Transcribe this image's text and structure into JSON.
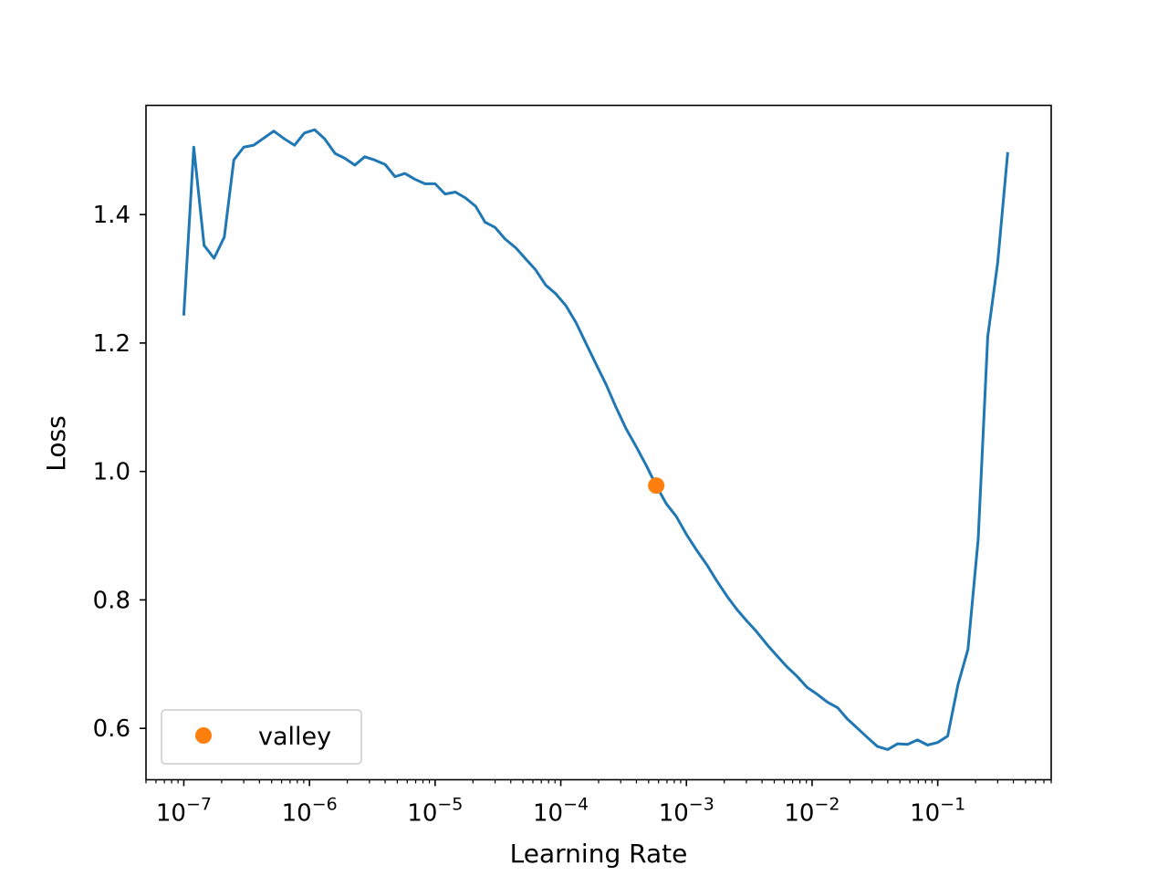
{
  "chart_data": {
    "type": "line",
    "xlabel": "Learning Rate",
    "ylabel": "Loss",
    "x_scale": "log",
    "xlim": [
      5e-08,
      0.8
    ],
    "ylim": [
      0.52,
      1.57
    ],
    "grid": false,
    "legend_position": "lower-left",
    "x_ticks": [
      {
        "value": 1e-07,
        "exp": "−7"
      },
      {
        "value": 1e-06,
        "exp": "−6"
      },
      {
        "value": 1e-05,
        "exp": "−5"
      },
      {
        "value": 0.0001,
        "exp": "−4"
      },
      {
        "value": 0.001,
        "exp": "−3"
      },
      {
        "value": 0.01,
        "exp": "−2"
      },
      {
        "value": 0.1,
        "exp": "−1"
      }
    ],
    "y_ticks": [
      {
        "value": 0.6,
        "label": "0.6"
      },
      {
        "value": 0.8,
        "label": "0.8"
      },
      {
        "value": 1.0,
        "label": "1.0"
      },
      {
        "value": 1.2,
        "label": "1.2"
      },
      {
        "value": 1.4,
        "label": "1.4"
      }
    ],
    "series": [
      {
        "color": "#1f77b4",
        "x": [
          1e-07,
          1.2e-07,
          1.45e-07,
          1.74e-07,
          2.1e-07,
          2.5e-07,
          3e-07,
          3.6e-07,
          4.4e-07,
          5.2e-07,
          6.3e-07,
          7.6e-07,
          9.1e-07,
          1.1e-06,
          1.32e-06,
          1.6e-06,
          1.9e-06,
          2.3e-06,
          2.75e-06,
          3.3e-06,
          4e-06,
          4.8e-06,
          5.75e-06,
          6.9e-06,
          8.3e-06,
          1e-05,
          1.2e-05,
          1.45e-05,
          1.74e-05,
          2.1e-05,
          2.5e-05,
          3e-05,
          3.6e-05,
          4.4e-05,
          5.2e-05,
          6.3e-05,
          7.6e-05,
          9.1e-05,
          0.00011,
          0.000132,
          0.00016,
          0.00019,
          0.00023,
          0.000275,
          0.00033,
          0.0004,
          0.00048,
          0.000575,
          0.00069,
          0.00083,
          0.001,
          0.0012,
          0.00145,
          0.00174,
          0.0021,
          0.0025,
          0.003,
          0.0036,
          0.0044,
          0.0052,
          0.0063,
          0.0076,
          0.0091,
          0.011,
          0.0132,
          0.016,
          0.019,
          0.023,
          0.0275,
          0.033,
          0.04,
          0.048,
          0.0575,
          0.069,
          0.083,
          0.1,
          0.12,
          0.145,
          0.174,
          0.21,
          0.25,
          0.3,
          0.36
        ],
        "y": [
          1.245,
          1.505,
          1.352,
          1.332,
          1.365,
          1.485,
          1.505,
          1.508,
          1.52,
          1.53,
          1.518,
          1.508,
          1.527,
          1.532,
          1.518,
          1.495,
          1.488,
          1.477,
          1.49,
          1.485,
          1.478,
          1.459,
          1.464,
          1.455,
          1.448,
          1.448,
          1.432,
          1.435,
          1.426,
          1.413,
          1.388,
          1.38,
          1.362,
          1.348,
          1.332,
          1.314,
          1.29,
          1.277,
          1.258,
          1.232,
          1.198,
          1.168,
          1.135,
          1.1,
          1.067,
          1.038,
          1.009,
          0.978,
          0.95,
          0.93,
          0.902,
          0.878,
          0.855,
          0.83,
          0.806,
          0.786,
          0.768,
          0.751,
          0.73,
          0.714,
          0.696,
          0.681,
          0.664,
          0.653,
          0.641,
          0.632,
          0.615,
          0.6,
          0.586,
          0.572,
          0.567,
          0.576,
          0.575,
          0.582,
          0.574,
          0.578,
          0.588,
          0.668,
          0.723,
          0.895,
          1.21,
          1.325,
          1.495
        ]
      },
      {
        "name": "valley",
        "type": "scatter",
        "color": "#ff7f0e",
        "x": [
          0.000575
        ],
        "y": [
          0.978
        ]
      }
    ]
  }
}
